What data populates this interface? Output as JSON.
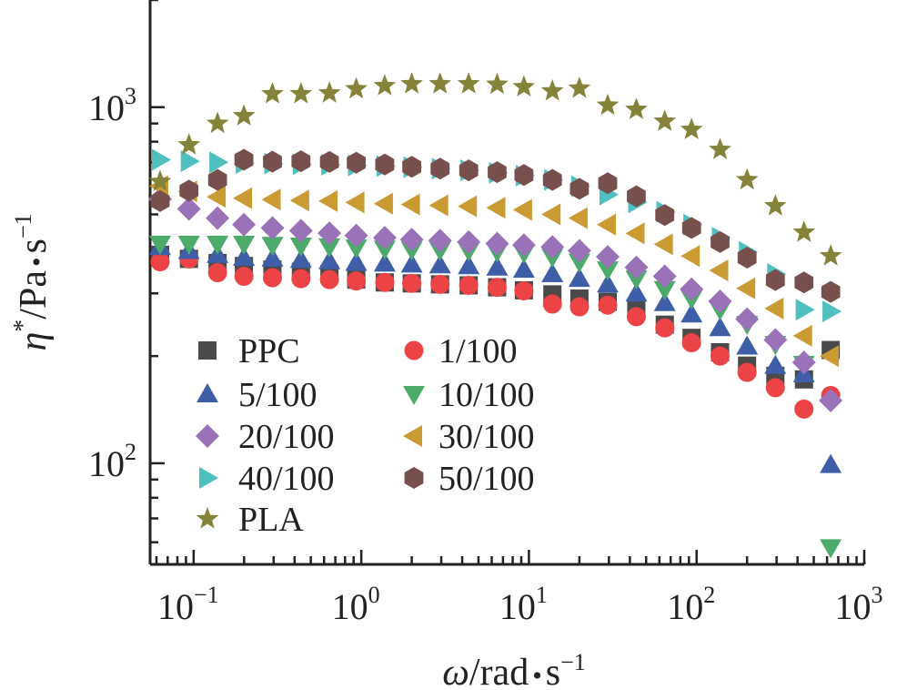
{
  "chart_data": {
    "type": "scatter",
    "title": "",
    "xlabel": {
      "symbol": "ω",
      "unit": "/rad",
      "dot": "•",
      "unit2": "s",
      "exp": "−1"
    },
    "ylabel": {
      "symbol": "η",
      "sup": "*",
      "unit": "/Pa",
      "dot": "•",
      "unit2": "s",
      "exp": "−1"
    },
    "x_scale": "log",
    "y_scale": "log",
    "xlim": [
      0.055,
      1000
    ],
    "ylim": [
      52,
      2000
    ],
    "x_ticks": [
      {
        "value": 0.1,
        "base": "10",
        "exp": "−1"
      },
      {
        "value": 1,
        "base": "10",
        "exp": "0"
      },
      {
        "value": 10,
        "base": "10",
        "exp": "1"
      },
      {
        "value": 100,
        "base": "10",
        "exp": "2"
      },
      {
        "value": 1000,
        "base": "10",
        "exp": "3"
      }
    ],
    "y_ticks": [
      {
        "value": 100,
        "base": "10",
        "exp": "2"
      },
      {
        "value": 1000,
        "base": "10",
        "exp": "3"
      }
    ],
    "grid": false,
    "legend_position": "lower-left",
    "series": [
      {
        "name": "PPC",
        "marker": "square",
        "color": "#4a4a4a",
        "x": [
          0.0631,
          0.0938,
          0.1389,
          0.1995,
          0.2951,
          0.4365,
          0.6457,
          0.9333,
          1.38,
          2.0,
          2.95,
          4.37,
          6.46,
          9.33,
          13.8,
          20.0,
          29.5,
          43.7,
          64.6,
          93.3,
          138,
          200,
          295,
          437,
          631
        ],
        "y": [
          385,
          375,
          365,
          358,
          350,
          345,
          340,
          328,
          322,
          320,
          318,
          316,
          312,
          306,
          298,
          290,
          284,
          270,
          245,
          225,
          205,
          188,
          176,
          172,
          208
        ]
      },
      {
        "name": "1/100",
        "marker": "circle",
        "color": "#ec4446",
        "x": [
          0.0631,
          0.0938,
          0.1389,
          0.1995,
          0.2951,
          0.4365,
          0.6457,
          0.9333,
          1.38,
          2.0,
          2.95,
          4.37,
          6.46,
          9.33,
          13.8,
          20.0,
          29.5,
          43.7,
          64.6,
          93.3,
          138,
          200,
          295,
          437,
          631
        ],
        "y": [
          368,
          375,
          343,
          335,
          332,
          330,
          328,
          325,
          322,
          320,
          318,
          316,
          312,
          305,
          280,
          275,
          278,
          258,
          240,
          218,
          200,
          180,
          163,
          142,
          155
        ]
      },
      {
        "name": "5/100",
        "marker": "triangle-up",
        "color": "#3f5ea8",
        "x": [
          0.0631,
          0.0938,
          0.1389,
          0.1995,
          0.2951,
          0.4365,
          0.6457,
          0.9333,
          1.38,
          2.0,
          2.95,
          4.37,
          6.46,
          9.33,
          13.8,
          20.0,
          29.5,
          43.7,
          64.6,
          93.3,
          138,
          200,
          295,
          437,
          631
        ],
        "y": [
          405,
          395,
          385,
          378,
          376,
          373,
          370,
          366,
          364,
          362,
          360,
          358,
          355,
          350,
          340,
          330,
          318,
          300,
          282,
          262,
          240,
          213,
          188,
          178,
          99
        ]
      },
      {
        "name": "10/100",
        "marker": "triangle-down",
        "color": "#4caa6b",
        "x": [
          0.0631,
          0.0938,
          0.1389,
          0.1995,
          0.2951,
          0.4365,
          0.6457,
          0.9333,
          1.38,
          2.0,
          2.95,
          4.37,
          6.46,
          9.33,
          13.8,
          20.0,
          29.5,
          43.7,
          64.6,
          93.3,
          138,
          200,
          295,
          437,
          631
        ],
        "y": [
          413,
          413,
          413,
          413,
          410,
          408,
          406,
          403,
          400,
          398,
          397,
          395,
          393,
          390,
          380,
          368,
          350,
          330,
          308,
          290,
          270,
          246,
          216,
          190,
          58
        ]
      },
      {
        "name": "20/100",
        "marker": "diamond",
        "color": "#9a72b8",
        "x": [
          0.0631,
          0.0938,
          0.1389,
          0.1995,
          0.2951,
          0.4365,
          0.6457,
          0.9333,
          1.38,
          2.0,
          2.95,
          4.37,
          6.46,
          9.33,
          13.8,
          20.0,
          29.5,
          43.7,
          64.6,
          93.3,
          138,
          200,
          295,
          437,
          631
        ],
        "y": [
          552,
          518,
          488,
          468,
          458,
          450,
          443,
          436,
          430,
          425,
          422,
          418,
          414,
          410,
          405,
          395,
          380,
          355,
          335,
          308,
          285,
          254,
          222,
          192,
          150
        ]
      },
      {
        "name": "30/100",
        "marker": "triangle-left",
        "color": "#c99b32",
        "x": [
          0.0631,
          0.0938,
          0.1389,
          0.1995,
          0.2951,
          0.4365,
          0.6457,
          0.9333,
          1.38,
          2.0,
          2.95,
          4.37,
          6.46,
          9.33,
          13.8,
          20.0,
          29.5,
          43.7,
          64.6,
          93.3,
          138,
          200,
          295,
          437,
          631
        ],
        "y": [
          600,
          580,
          560,
          555,
          550,
          547,
          545,
          540,
          536,
          533,
          530,
          527,
          522,
          515,
          500,
          488,
          468,
          442,
          412,
          382,
          348,
          310,
          272,
          228,
          200
        ]
      },
      {
        "name": "40/100",
        "marker": "triangle-right",
        "color": "#4ec0c0",
        "x": [
          0.0631,
          0.0938,
          0.1389,
          0.1995,
          0.2951,
          0.4365,
          0.6457,
          0.9333,
          1.38,
          2.0,
          2.95,
          4.37,
          6.46,
          9.33,
          13.8,
          20.0,
          29.5,
          43.7,
          64.6,
          93.3,
          138,
          200,
          295,
          437,
          631
        ],
        "y": [
          712,
          705,
          700,
          697,
          694,
          691,
          689,
          686,
          683,
          678,
          672,
          665,
          654,
          642,
          625,
          600,
          568,
          540,
          508,
          468,
          430,
          392,
          340,
          270,
          267
        ]
      },
      {
        "name": "50/100",
        "marker": "hexagon",
        "color": "#77504d",
        "x": [
          0.0631,
          0.0938,
          0.1389,
          0.1995,
          0.2951,
          0.4365,
          0.6457,
          0.9333,
          1.38,
          2.0,
          2.95,
          4.37,
          6.46,
          9.33,
          13.8,
          20.0,
          29.5,
          43.7,
          64.6,
          93.3,
          138,
          200,
          295,
          437,
          631
        ],
        "y": [
          545,
          583,
          625,
          712,
          703,
          705,
          702,
          698,
          690,
          680,
          672,
          665,
          657,
          645,
          625,
          590,
          612,
          562,
          498,
          458,
          418,
          378,
          327,
          322,
          303
        ]
      },
      {
        "name": "PLA",
        "marker": "star",
        "color": "#85823a",
        "x": [
          0.0631,
          0.0938,
          0.1389,
          0.1995,
          0.2951,
          0.4365,
          0.6457,
          0.9333,
          1.38,
          2.0,
          2.95,
          4.37,
          6.46,
          9.33,
          13.8,
          20.0,
          29.5,
          43.7,
          64.6,
          93.3,
          138,
          200,
          295,
          437,
          631
        ],
        "y": [
          618,
          783,
          900,
          945,
          1090,
          1090,
          1095,
          1125,
          1148,
          1162,
          1162,
          1162,
          1158,
          1140,
          1110,
          1130,
          1012,
          985,
          912,
          865,
          760,
          625,
          528,
          445,
          382
        ]
      }
    ]
  }
}
